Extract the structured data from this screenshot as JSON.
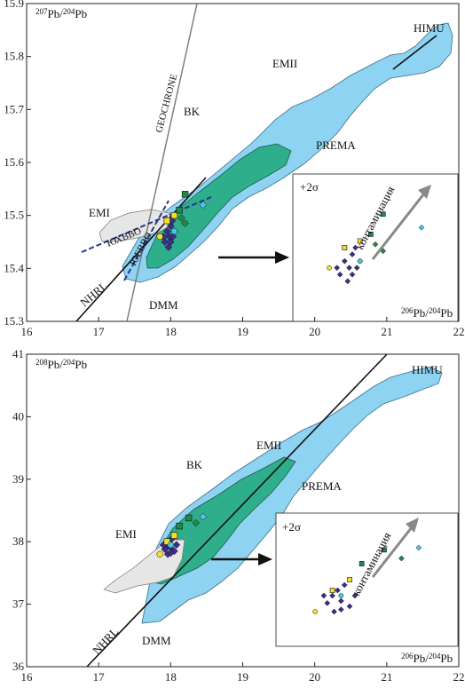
{
  "colors": {
    "light_blue": "#8fd3f2",
    "green": "#2fae8c",
    "grey": "#e6e6e6",
    "purple": "#3b2f8a",
    "yellow": "#f2e12b",
    "dark_green": "#1f8a4c",
    "cyan": "#4fc3e8",
    "dashed_blue": "#26358f",
    "geochron": "#777777"
  },
  "chart_data": [
    {
      "type": "scatter",
      "title": "",
      "xlabel": "206Pb/204Pb",
      "ylabel": "207Pb/204Pb",
      "xlabel_parts": [
        "206",
        "Pb/",
        "204",
        "Pb"
      ],
      "ylabel_parts": [
        "207",
        "Pb/",
        "204",
        "Pb"
      ],
      "xlim": [
        16,
        22
      ],
      "ylim": [
        15.3,
        15.9
      ],
      "xticks": [
        "16",
        "17",
        "18",
        "19",
        "20",
        "21",
        "22"
      ],
      "yticks": [
        "15.3",
        "15.4",
        "15.5",
        "15.6",
        "15.7",
        "15.8",
        "15.9"
      ],
      "field_labels": {
        "emi": "EMI",
        "emii": "EMII",
        "himu": "HIMU",
        "prema": "PREMA",
        "dmm": "DMM",
        "bk": "BK",
        "nhrl": "NHRL",
        "geochrone": "GEOCHRONE",
        "yuhvvo": "ЮХВВО",
        "yuevvo": "ЮЕВВО"
      },
      "inset": {
        "sigma_label": "+2σ",
        "trend_label": "контаминация"
      },
      "series": [
        {
          "marker": "diamond",
          "color": "purple",
          "points": [
            [
              17.95,
              15.47
            ],
            [
              17.98,
              15.46
            ],
            [
              18.0,
              15.48
            ],
            [
              17.92,
              15.45
            ],
            [
              18.02,
              15.49
            ],
            [
              17.97,
              15.44
            ],
            [
              18.05,
              15.47
            ],
            [
              17.9,
              15.46
            ],
            [
              18.0,
              15.45
            ],
            [
              17.95,
              15.49
            ],
            [
              18.03,
              15.46
            ]
          ]
        },
        {
          "marker": "square",
          "color": "yellow",
          "points": [
            [
              17.95,
              15.49
            ],
            [
              18.05,
              15.5
            ]
          ]
        },
        {
          "marker": "circle",
          "color": "yellow",
          "points": [
            [
              17.85,
              15.46
            ]
          ]
        },
        {
          "marker": "square",
          "color": "dark_green",
          "points": [
            [
              18.2,
              15.54
            ],
            [
              18.12,
              15.51
            ]
          ]
        },
        {
          "marker": "diamond",
          "color": "dark_green",
          "points": [
            [
              18.2,
              15.485
            ],
            [
              18.15,
              15.495
            ]
          ]
        },
        {
          "marker": "diamond",
          "color": "cyan",
          "points": [
            [
              18.45,
              15.52
            ]
          ]
        },
        {
          "marker": "circle",
          "color": "cyan",
          "points": [
            [
              18.05,
              15.47
            ]
          ]
        }
      ]
    },
    {
      "type": "scatter",
      "title": "",
      "xlabel": "206Pb/204Pb",
      "ylabel": "208Pb/204Pb",
      "xlabel_parts": [
        "206",
        "Pb/",
        "204",
        "Pb"
      ],
      "ylabel_parts": [
        "208",
        "Pb/",
        "204",
        "Pb"
      ],
      "xlim": [
        16,
        22
      ],
      "ylim": [
        36,
        41
      ],
      "xticks": [
        "16",
        "17",
        "18",
        "19",
        "20",
        "21",
        "22"
      ],
      "yticks": [
        "36",
        "37",
        "38",
        "39",
        "40",
        "41"
      ],
      "field_labels": {
        "emi": "EMI",
        "emii": "EMII",
        "himu": "HIMU",
        "prema": "PREMA",
        "dmm": "DMM",
        "bk": "BK",
        "nhrl": "NHRL"
      },
      "inset": {
        "sigma_label": "+2σ",
        "trend_label": "контаминация"
      },
      "series": [
        {
          "marker": "diamond",
          "color": "purple",
          "points": [
            [
              17.95,
              37.95
            ],
            [
              18.0,
              37.9
            ],
            [
              17.98,
              38.0
            ],
            [
              18.05,
              37.85
            ],
            [
              17.92,
              37.88
            ],
            [
              18.02,
              38.05
            ],
            [
              17.96,
              37.8
            ],
            [
              18.08,
              37.95
            ],
            [
              17.9,
              37.95
            ],
            [
              18.0,
              37.82
            ]
          ]
        },
        {
          "marker": "square",
          "color": "yellow",
          "points": [
            [
              17.95,
              38.0
            ],
            [
              18.05,
              38.1
            ]
          ]
        },
        {
          "marker": "circle",
          "color": "yellow",
          "points": [
            [
              17.85,
              37.8
            ]
          ]
        },
        {
          "marker": "square",
          "color": "dark_green",
          "points": [
            [
              18.25,
              38.38
            ],
            [
              18.12,
              38.25
            ]
          ]
        },
        {
          "marker": "diamond",
          "color": "dark_green",
          "points": [
            [
              18.35,
              38.3
            ]
          ]
        },
        {
          "marker": "diamond",
          "color": "cyan",
          "points": [
            [
              18.45,
              38.4
            ]
          ]
        },
        {
          "marker": "circle",
          "color": "cyan",
          "points": [
            [
              18.0,
              37.95
            ]
          ]
        }
      ]
    }
  ]
}
